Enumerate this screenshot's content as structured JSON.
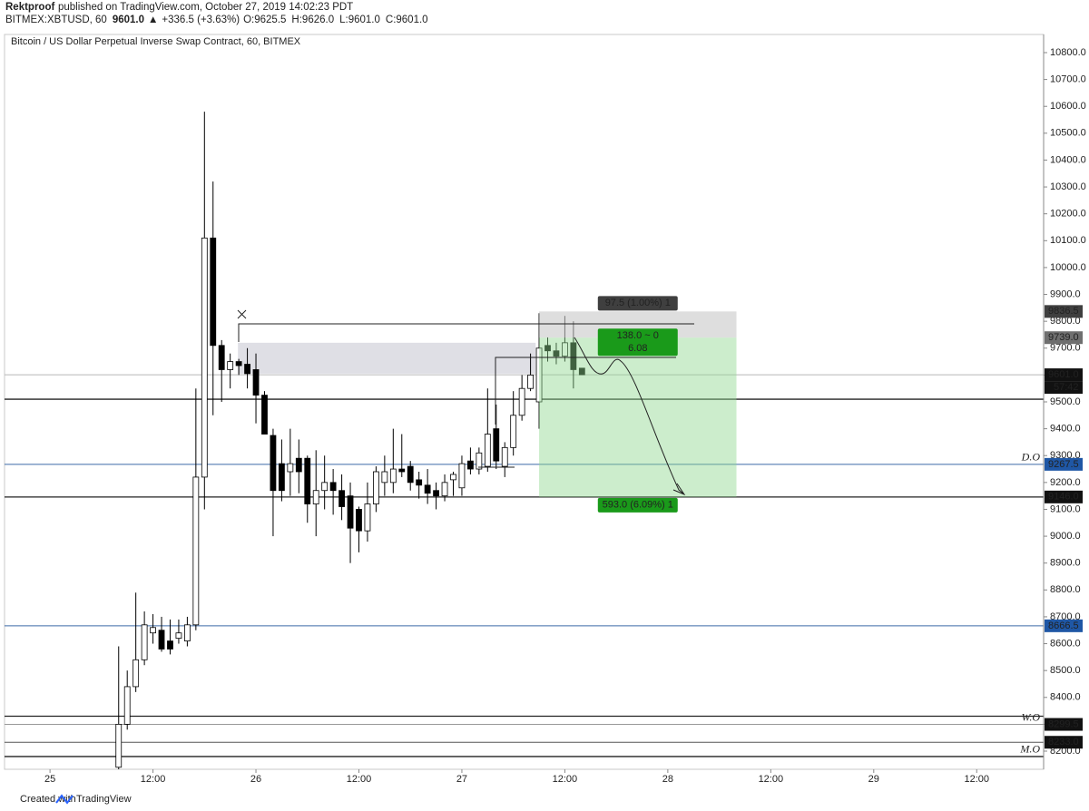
{
  "header": {
    "author": "Rektproof",
    "published": "published on TradingView.com, October 27, 2019 14:02:23 PDT",
    "symbol": "BITMEX:XBTUSD, 60",
    "last": "9601.0",
    "arrow": "▲",
    "change": "+336.5 (+3.63%)",
    "ohlc": [
      {
        "label": "O:",
        "value": "9625.5"
      },
      {
        "label": "H:",
        "value": "9626.0"
      },
      {
        "label": "L:",
        "value": "9601.0"
      },
      {
        "label": "C:",
        "value": "9601.0"
      }
    ]
  },
  "footer": {
    "text": "Created with",
    "brand": "TradingView"
  },
  "chart_data": {
    "type": "candlestick",
    "title": "Bitcoin / US Dollar Perpetual Inverse Swap Contract, 60, BITMEX",
    "x": [
      8,
      9,
      10,
      11,
      12,
      13,
      14,
      15,
      16,
      17,
      18,
      19,
      20,
      21,
      22,
      23,
      24,
      25,
      26,
      27,
      28,
      29,
      30,
      31,
      32,
      33,
      34,
      35,
      36,
      37,
      38,
      39,
      40,
      41,
      42,
      43,
      44,
      45,
      46,
      47,
      48,
      49,
      50,
      51,
      52,
      53,
      54,
      55,
      56,
      57,
      58,
      59,
      60,
      61,
      62
    ],
    "open": [
      8140,
      8300,
      8440,
      8540,
      8640,
      8650,
      8610,
      8620,
      8610,
      8670,
      9220,
      10110,
      9710,
      9620,
      9650,
      9640,
      9620,
      9525,
      9375,
      9270,
      9240,
      9290,
      9290,
      9120,
      9170,
      9200,
      9170,
      9150,
      9100,
      9020,
      9120,
      9200,
      9200,
      9250,
      9260,
      9210,
      9190,
      9170,
      9150,
      9210,
      9180,
      9280,
      9250,
      9260,
      9400,
      9260,
      9330,
      9450,
      9550,
      9500,
      9710,
      9690,
      9670,
      9720,
      9625.5
    ],
    "high": [
      8590,
      8500,
      8790,
      8720,
      8710,
      8700,
      8690,
      8690,
      8700,
      9550,
      10580,
      10320,
      9730,
      9680,
      9660,
      9700,
      9680,
      9540,
      9400,
      9360,
      9400,
      9360,
      9300,
      9320,
      9300,
      9250,
      9230,
      9200,
      9110,
      9200,
      9260,
      9300,
      9400,
      9380,
      9280,
      9240,
      9250,
      9200,
      9230,
      9240,
      9300,
      9330,
      9330,
      9550,
      9490,
      9350,
      9540,
      9600,
      9680,
      9830,
      9740,
      9720,
      9820,
      9800,
      9626
    ],
    "low": [
      8100,
      8280,
      8420,
      8520,
      8600,
      8570,
      8560,
      8600,
      8590,
      8650,
      9100,
      9450,
      9500,
      9550,
      9600,
      9550,
      9420,
      9380,
      9000,
      9130,
      9150,
      9160,
      9050,
      9000,
      9100,
      9080,
      9060,
      8900,
      8940,
      8980,
      9090,
      9150,
      9160,
      9220,
      9170,
      9140,
      9120,
      9100,
      9130,
      9150,
      9150,
      9230,
      9230,
      9240,
      9250,
      9220,
      9300,
      9430,
      9540,
      9400,
      9650,
      9640,
      9650,
      9550,
      9601
    ],
    "close": [
      8300,
      8440,
      8540,
      8670,
      8660,
      8580,
      8580,
      8640,
      8670,
      9220,
      10110,
      9710,
      9620,
      9650,
      9635,
      9605,
      9525,
      9380,
      9170,
      9170,
      9270,
      9240,
      9120,
      9170,
      9200,
      9170,
      9110,
      9030,
      9020,
      9120,
      9240,
      9240,
      9250,
      9240,
      9200,
      9190,
      9160,
      9150,
      9200,
      9230,
      9270,
      9250,
      9310,
      9380,
      9280,
      9330,
      9450,
      9550,
      9600,
      9700,
      9690,
      9670,
      9720,
      9620,
      9601
    ],
    "up_color": "#ffffff",
    "down_color": "#000000",
    "wick_color": "#000000",
    "xlim": [
      -5.3,
      115.8
    ],
    "xticks": [
      {
        "value": 0,
        "label": "25"
      },
      {
        "value": 12,
        "label": "12:00"
      },
      {
        "value": 24,
        "label": "26"
      },
      {
        "value": 36,
        "label": "12:00"
      },
      {
        "value": 48,
        "label": "27"
      },
      {
        "value": 60,
        "label": "12:00"
      },
      {
        "value": 72,
        "label": "28"
      },
      {
        "value": 84,
        "label": "12:00"
      },
      {
        "value": 96,
        "label": "29"
      },
      {
        "value": 108,
        "label": "12:00"
      }
    ],
    "ylim": [
      8132.5,
      10867.5
    ],
    "yticks": [
      {
        "value": 8200,
        "label": "8200.0"
      },
      {
        "value": 8300,
        "label": "8300.0"
      },
      {
        "value": 8400,
        "label": "8400.0"
      },
      {
        "value": 8500,
        "label": "8500.0"
      },
      {
        "value": 8600,
        "label": "8600.0"
      },
      {
        "value": 8700,
        "label": "8700.0"
      },
      {
        "value": 8800,
        "label": "8800.0"
      },
      {
        "value": 8900,
        "label": "8900.0"
      },
      {
        "value": 9000,
        "label": "9000.0"
      },
      {
        "value": 9100,
        "label": "9100.0"
      },
      {
        "value": 9200,
        "label": "9200.0"
      },
      {
        "value": 9300,
        "label": "9300.0"
      },
      {
        "value": 9400,
        "label": "9400.0"
      },
      {
        "value": 9500,
        "label": "9500.0"
      },
      {
        "value": 9600,
        "label": "9600.0"
      },
      {
        "value": 9700,
        "label": "9700.0"
      },
      {
        "value": 9800,
        "label": "9800.0"
      },
      {
        "value": 9900,
        "label": "9900.0"
      },
      {
        "value": 10000,
        "label": "10000.0"
      },
      {
        "value": 10100,
        "label": "10100.0"
      },
      {
        "value": 10200,
        "label": "10200.0"
      },
      {
        "value": 10300,
        "label": "10300.0"
      },
      {
        "value": 10400,
        "label": "10400.0"
      },
      {
        "value": 10500,
        "label": "10500.0"
      },
      {
        "value": 10600,
        "label": "10600.0"
      },
      {
        "value": 10700,
        "label": "10700.0"
      },
      {
        "value": 10800,
        "label": "10800.0"
      }
    ],
    "grid": false,
    "levels": [
      {
        "value": 9836.5,
        "label": "9836.5",
        "box": "#3f3f3f"
      },
      {
        "value": 9739,
        "label": "9739.0",
        "box": "#6f6f6f"
      },
      {
        "value": 9601,
        "label": "9601.0",
        "box": "#111111",
        "line": "#b8b8b8"
      },
      {
        "value": 9510,
        "line": "#222222"
      },
      {
        "value": 9267.5,
        "label": "9267.5",
        "box": "#1f57a5",
        "line": "#3d6aa6",
        "tag": "D.O"
      },
      {
        "value": 9146,
        "label": "9146.0",
        "box": "#111111",
        "line": "#222222"
      },
      {
        "value": 8666.5,
        "label": "8666.5",
        "box": "#1f57a5",
        "line": "#3d6aa6"
      },
      {
        "value": 8330,
        "line": "#222222"
      },
      {
        "value": 8299.5,
        "label": "8299.5",
        "box": "#111111",
        "line": "#999999",
        "tag": "W.O"
      },
      {
        "value": 8233,
        "label": "8233.0",
        "box": "#111111",
        "line": "#555555"
      },
      {
        "value": 8180,
        "line": "#222222",
        "tag": "M.O"
      }
    ],
    "countdown": "57:42",
    "zones": [
      {
        "x": [
          21.9,
          56.6
        ],
        "y": [
          9605,
          9720
        ],
        "color": "#c9c9d3"
      }
    ],
    "position": {
      "x": [
        57,
        80
      ],
      "entry": 9739,
      "stop": 9836.5,
      "target": 9146,
      "stop_label": "97.5 (1.00%) 1",
      "entry_label": [
        "138.0 ~ 0",
        "6.08"
      ],
      "target_label": "593.0 (6.09%) 1",
      "stop_color": "#c8c8c8",
      "target_color": "#8fd68f",
      "label_green": "#1a9a1a",
      "label_gray": "#3f3f3f"
    }
  }
}
